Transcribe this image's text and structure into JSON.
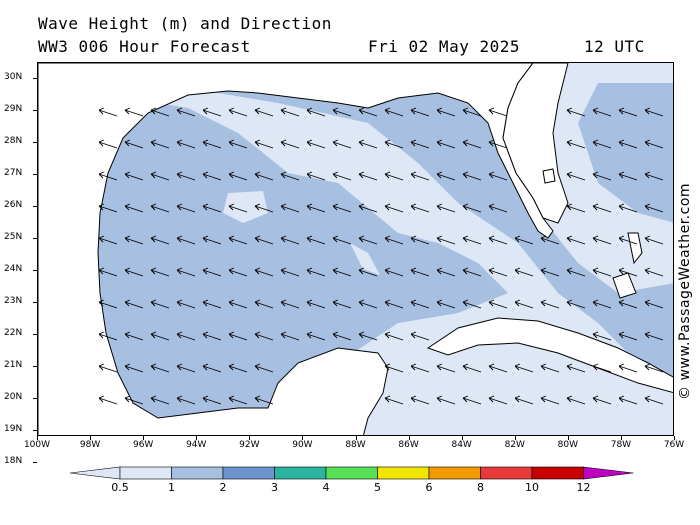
{
  "header": {
    "title_line1": "Wave Height (m) and Direction",
    "title_line2": "WW3 006 Hour Forecast",
    "date": "Fri 02 May 2025",
    "time": "12 UTC"
  },
  "credit": "© www.PassageWeather.com",
  "axes": {
    "lat_labels": [
      "30N",
      "29N",
      "28N",
      "27N",
      "26N",
      "25N",
      "24N",
      "23N",
      "22N",
      "21N",
      "20N",
      "19N",
      "18N"
    ],
    "lon_labels": [
      "100W",
      "98W",
      "96W",
      "94W",
      "92W",
      "90W",
      "88W",
      "86W",
      "84W",
      "82W",
      "80W",
      "78W",
      "76W"
    ]
  },
  "legend": {
    "labels": [
      "0.5",
      "1",
      "2",
      "3",
      "4",
      "5",
      "6",
      "8",
      "10",
      "12"
    ],
    "colors": [
      "#dde7f5",
      "#a7bfe0",
      "#6e94cf",
      "#2bb5a0",
      "#55e055",
      "#f2e600",
      "#f29a00",
      "#e83a3a",
      "#c80000",
      "#c000c0"
    ]
  },
  "colors": {
    "sea_low": "#dde7f5",
    "sea_mid": "#a7bfe0",
    "land": "#ffffff",
    "coast": "#000000"
  },
  "arrow_direction": "toward west-northwest"
}
